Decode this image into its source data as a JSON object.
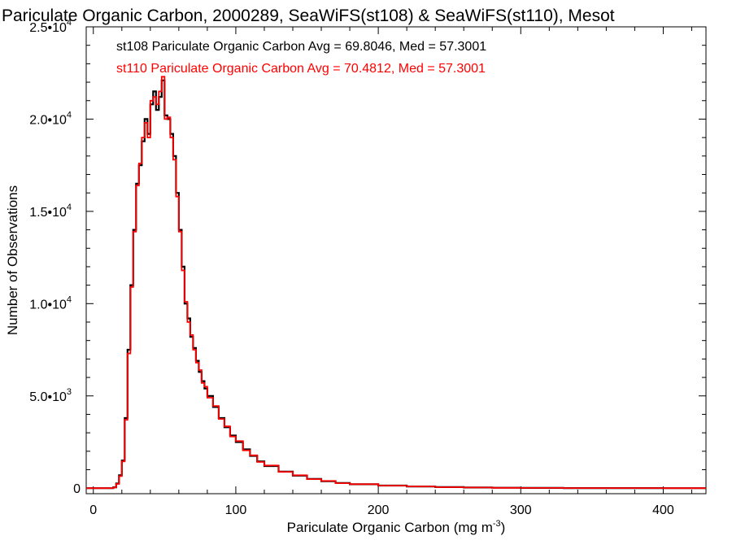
{
  "chart_data": {
    "type": "line",
    "title": "Pariculate Organic Carbon, 2000289, SeaWiFS(st108) & SeaWiFS(st110), Mesot",
    "xlabel": "Pariculate Organic Carbon (mg m",
    "xlabel_sup": "-3",
    "xlabel_end": ")",
    "ylabel": "Number of Observations",
    "xlim": [
      -5,
      430
    ],
    "ylim": [
      -300,
      25000
    ],
    "grid": false,
    "x_ticks": [
      {
        "value": 0,
        "label": "0"
      },
      {
        "value": 100,
        "label": "100"
      },
      {
        "value": 200,
        "label": "200"
      },
      {
        "value": 300,
        "label": "300"
      },
      {
        "value": 400,
        "label": "400"
      }
    ],
    "y_ticks": [
      {
        "value": 0,
        "label": "0",
        "exp": ""
      },
      {
        "value": 5000,
        "label": "5.0•10",
        "exp": "3"
      },
      {
        "value": 10000,
        "label": "1.0•10",
        "exp": "4"
      },
      {
        "value": 15000,
        "label": "1.5•10",
        "exp": "4"
      },
      {
        "value": 20000,
        "label": "2.0•10",
        "exp": "4"
      },
      {
        "value": 25000,
        "label": "2.5•10",
        "exp": "4"
      }
    ],
    "legend": [
      {
        "text": "st108 Pariculate Organic Carbon Avg = 69.8046, Med = 57.3001",
        "color": "#000000"
      },
      {
        "text": "st110 Pariculate Organic Carbon Avg = 70.4812, Med = 57.3001",
        "color": "#ff0000"
      }
    ],
    "series": [
      {
        "color": "#000000",
        "x": [
          -5,
          10,
          14,
          16,
          18,
          20,
          22,
          24,
          26,
          28,
          30,
          32,
          34,
          36,
          38,
          40,
          42,
          44,
          46,
          48,
          50,
          52,
          54,
          56,
          58,
          60,
          62,
          64,
          66,
          68,
          70,
          72,
          74,
          76,
          78,
          80,
          84,
          88,
          92,
          96,
          100,
          105,
          110,
          115,
          120,
          130,
          140,
          150,
          160,
          170,
          180,
          200,
          220,
          240,
          260,
          280,
          300,
          330,
          360,
          400,
          430
        ],
        "y": [
          0,
          0,
          50,
          250,
          700,
          1500,
          3800,
          7500,
          11000,
          14000,
          16500,
          17500,
          18800,
          20000,
          19200,
          20800,
          21500,
          20500,
          21200,
          22100,
          20200,
          20000,
          19200,
          18000,
          16000,
          14000,
          12000,
          10000,
          9200,
          8200,
          7600,
          6900,
          6300,
          5800,
          5400,
          5000,
          4400,
          3800,
          3300,
          2850,
          2500,
          2100,
          1750,
          1450,
          1200,
          900,
          680,
          500,
          380,
          280,
          210,
          140,
          90,
          55,
          35,
          20,
          12,
          6,
          3,
          1,
          0
        ]
      },
      {
        "color": "#ff0000",
        "x": [
          -5,
          10,
          14,
          16,
          18,
          20,
          22,
          24,
          26,
          28,
          30,
          32,
          34,
          36,
          38,
          40,
          42,
          44,
          46,
          48,
          50,
          52,
          54,
          56,
          58,
          60,
          62,
          64,
          66,
          68,
          70,
          72,
          74,
          76,
          78,
          80,
          84,
          88,
          92,
          96,
          100,
          105,
          110,
          115,
          120,
          130,
          140,
          150,
          160,
          170,
          180,
          200,
          220,
          240,
          260,
          280,
          300,
          330,
          360,
          400,
          430
        ],
        "y": [
          0,
          0,
          40,
          230,
          650,
          1450,
          3700,
          7300,
          10900,
          13900,
          16400,
          17600,
          19000,
          19800,
          19000,
          21000,
          21200,
          20800,
          21500,
          22300,
          20000,
          20100,
          19000,
          17800,
          15800,
          13900,
          11800,
          10100,
          9000,
          8300,
          7500,
          6800,
          6400,
          5700,
          5500,
          4900,
          4450,
          3750,
          3350,
          2800,
          2550,
          2050,
          1780,
          1420,
          1230,
          880,
          700,
          490,
          390,
          270,
          215,
          135,
          92,
          52,
          36,
          19,
          13,
          5,
          3,
          1,
          0
        ]
      }
    ]
  }
}
